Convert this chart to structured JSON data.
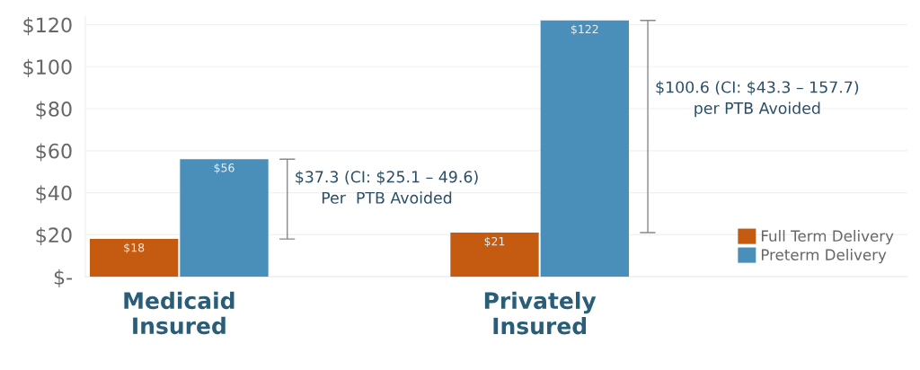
{
  "chart_data": {
    "type": "bar",
    "categories": [
      "Medicaid\nInsured",
      "Privately\nInsured"
    ],
    "series": [
      {
        "name": "Full Term Delivery",
        "color": "#c55a11",
        "values": [
          18,
          21
        ],
        "value_labels": [
          "$18",
          "$21"
        ]
      },
      {
        "name": "Preterm Delivery",
        "color": "#4a8fba",
        "values": [
          56,
          122
        ],
        "value_labels": [
          "$56",
          "$122"
        ]
      }
    ],
    "ylim": [
      0,
      124
    ],
    "yticks": [
      {
        "value": 0,
        "label": "$-"
      },
      {
        "value": 20,
        "label": "$20"
      },
      {
        "value": 40,
        "label": "$40"
      },
      {
        "value": 60,
        "label": "$60"
      },
      {
        "value": 80,
        "label": "$80"
      },
      {
        "value": 100,
        "label": "$100"
      },
      {
        "value": 120,
        "label": "$120"
      }
    ],
    "grid": "y",
    "legend": "bottom right",
    "annotations": [
      "$37.3 (CI: $25.1 – 49.6)\nPer  PTB Avoided",
      "$100.6 (CI: $43.3 – 157.7)\nper PTB Avoided"
    ]
  }
}
